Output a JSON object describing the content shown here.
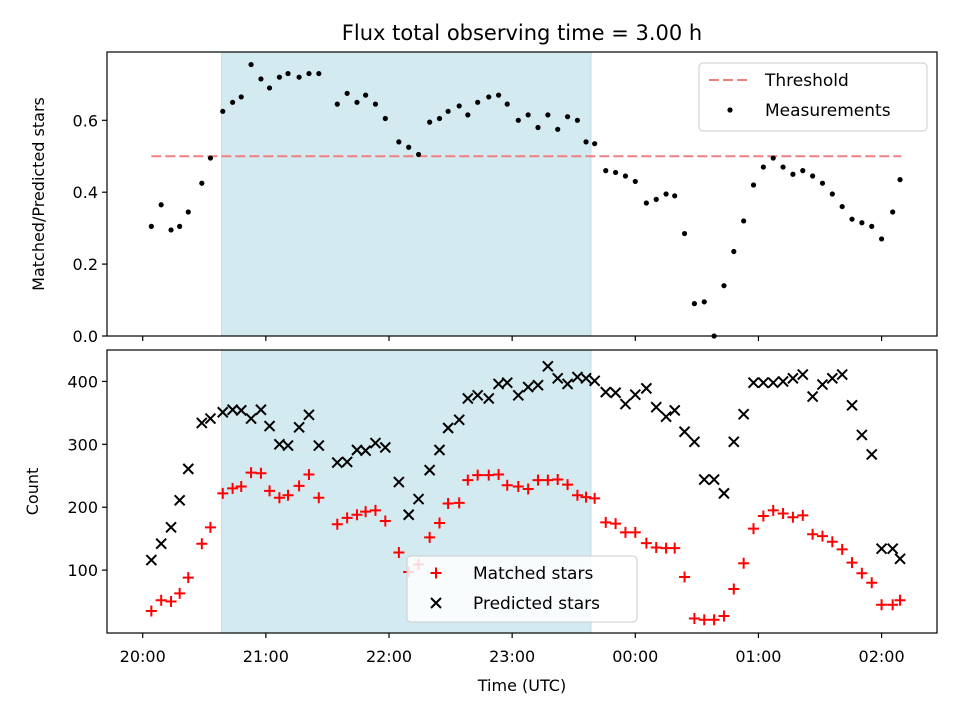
{
  "figure": {
    "title": "Flux total observing time = 3.00 h",
    "x_axis": {
      "label": "Time (UTC)",
      "ticks": [
        {
          "h": 20,
          "label": "20:00"
        },
        {
          "h": 21,
          "label": "21:00"
        },
        {
          "h": 22,
          "label": "22:00"
        },
        {
          "h": 23,
          "label": "23:00"
        },
        {
          "h": 24,
          "label": "00:00"
        },
        {
          "h": 25,
          "label": "01:00"
        },
        {
          "h": 26,
          "label": "02:00"
        }
      ],
      "range": [
        19.71,
        26.45
      ]
    },
    "highlight": {
      "from": 20.64,
      "to": 23.64,
      "color": "#d3eaf0"
    }
  },
  "chart_data": [
    {
      "type": "scatter",
      "ylabel": "Matched/Predicted stars",
      "ylim": [
        0,
        0.79
      ],
      "yticks": [
        0.0,
        0.2,
        0.4,
        0.6
      ],
      "ytick_labels": [
        "0.0",
        "0.2",
        "0.4",
        "0.6"
      ],
      "threshold": {
        "name": "Threshold",
        "value": 0.5,
        "x_range": [
          20.07,
          26.16
        ],
        "color": "#f08080"
      },
      "legend": {
        "position": "top-right",
        "entries": [
          "Threshold",
          "Measurements"
        ]
      },
      "series": [
        {
          "name": "Measurements",
          "color": "#000000",
          "points": [
            [
              20.07,
              0.305
            ],
            [
              20.15,
              0.365
            ],
            [
              20.23,
              0.295
            ],
            [
              20.3,
              0.305
            ],
            [
              20.37,
              0.345
            ],
            [
              20.48,
              0.425
            ],
            [
              20.55,
              0.495
            ],
            [
              20.65,
              0.625
            ],
            [
              20.73,
              0.65
            ],
            [
              20.8,
              0.665
            ],
            [
              20.88,
              0.755
            ],
            [
              20.96,
              0.715
            ],
            [
              21.03,
              0.69
            ],
            [
              21.11,
              0.72
            ],
            [
              21.18,
              0.73
            ],
            [
              21.27,
              0.72
            ],
            [
              21.35,
              0.73
            ],
            [
              21.43,
              0.73
            ],
            [
              21.58,
              0.645
            ],
            [
              21.66,
              0.675
            ],
            [
              21.74,
              0.65
            ],
            [
              21.81,
              0.67
            ],
            [
              21.89,
              0.645
            ],
            [
              21.97,
              0.605
            ],
            [
              22.08,
              0.54
            ],
            [
              22.16,
              0.525
            ],
            [
              22.24,
              0.505
            ],
            [
              22.33,
              0.595
            ],
            [
              22.41,
              0.605
            ],
            [
              22.48,
              0.625
            ],
            [
              22.57,
              0.64
            ],
            [
              22.64,
              0.615
            ],
            [
              22.72,
              0.65
            ],
            [
              22.81,
              0.665
            ],
            [
              22.89,
              0.67
            ],
            [
              22.96,
              0.645
            ],
            [
              23.05,
              0.6
            ],
            [
              23.13,
              0.615
            ],
            [
              23.21,
              0.58
            ],
            [
              23.29,
              0.615
            ],
            [
              23.37,
              0.575
            ],
            [
              23.45,
              0.61
            ],
            [
              23.53,
              0.6
            ],
            [
              23.6,
              0.54
            ],
            [
              23.67,
              0.535
            ],
            [
              23.76,
              0.46
            ],
            [
              23.84,
              0.455
            ],
            [
              23.92,
              0.445
            ],
            [
              24.0,
              0.43
            ],
            [
              24.09,
              0.37
            ],
            [
              24.17,
              0.38
            ],
            [
              24.25,
              0.395
            ],
            [
              24.32,
              0.39
            ],
            [
              24.4,
              0.285
            ],
            [
              24.48,
              0.09
            ],
            [
              24.56,
              0.095
            ],
            [
              24.64,
              0.0
            ],
            [
              24.72,
              0.14
            ],
            [
              24.8,
              0.235
            ],
            [
              24.88,
              0.32
            ],
            [
              24.96,
              0.42
            ],
            [
              25.04,
              0.47
            ],
            [
              25.12,
              0.495
            ],
            [
              25.2,
              0.47
            ],
            [
              25.28,
              0.45
            ],
            [
              25.36,
              0.46
            ],
            [
              25.44,
              0.445
            ],
            [
              25.52,
              0.425
            ],
            [
              25.6,
              0.395
            ],
            [
              25.68,
              0.36
            ],
            [
              25.76,
              0.325
            ],
            [
              25.84,
              0.315
            ],
            [
              25.92,
              0.305
            ],
            [
              26.0,
              0.27
            ],
            [
              26.09,
              0.345
            ],
            [
              26.15,
              0.435
            ]
          ]
        }
      ]
    },
    {
      "type": "scatter",
      "ylabel": "Count",
      "ylim": [
        0,
        450
      ],
      "yticks": [
        100,
        200,
        300,
        400
      ],
      "ytick_labels": [
        "100",
        "200",
        "300",
        "400"
      ],
      "legend": {
        "position": "bottom-center",
        "entries": [
          "Matched stars",
          "Predicted stars"
        ]
      },
      "series": [
        {
          "name": "Matched stars",
          "marker": "plus",
          "color": "#ff0000",
          "points": [
            [
              20.07,
              35
            ],
            [
              20.15,
              52
            ],
            [
              20.23,
              50
            ],
            [
              20.3,
              63
            ],
            [
              20.37,
              88
            ],
            [
              20.48,
              142
            ],
            [
              20.55,
              168
            ],
            [
              20.65,
              222
            ],
            [
              20.73,
              230
            ],
            [
              20.8,
              233
            ],
            [
              20.88,
              255
            ],
            [
              20.96,
              254
            ],
            [
              21.03,
              226
            ],
            [
              21.11,
              215
            ],
            [
              21.18,
              219
            ],
            [
              21.27,
              234
            ],
            [
              21.35,
              252
            ],
            [
              21.43,
              215
            ],
            [
              21.58,
              173
            ],
            [
              21.66,
              183
            ],
            [
              21.74,
              188
            ],
            [
              21.81,
              193
            ],
            [
              21.89,
              195
            ],
            [
              21.97,
              178
            ],
            [
              22.08,
              128
            ],
            [
              22.16,
              97
            ],
            [
              22.24,
              109
            ],
            [
              22.33,
              152
            ],
            [
              22.41,
              175
            ],
            [
              22.48,
              206
            ],
            [
              22.57,
              207
            ],
            [
              22.64,
              243
            ],
            [
              22.72,
              251
            ],
            [
              22.81,
              251
            ],
            [
              22.89,
              252
            ],
            [
              22.96,
              235
            ],
            [
              23.05,
              233
            ],
            [
              23.13,
              229
            ],
            [
              23.21,
              243
            ],
            [
              23.29,
              243
            ],
            [
              23.37,
              244
            ],
            [
              23.45,
              236
            ],
            [
              23.53,
              219
            ],
            [
              23.6,
              216
            ],
            [
              23.67,
              214
            ],
            [
              23.76,
              176
            ],
            [
              23.84,
              174
            ],
            [
              23.92,
              160
            ],
            [
              24.0,
              160
            ],
            [
              24.09,
              143
            ],
            [
              24.17,
              136
            ],
            [
              24.25,
              135
            ],
            [
              24.32,
              135
            ],
            [
              24.4,
              89
            ],
            [
              24.48,
              23
            ],
            [
              24.56,
              21
            ],
            [
              24.64,
              21
            ],
            [
              24.72,
              27
            ],
            [
              24.8,
              70
            ],
            [
              24.88,
              111
            ],
            [
              24.96,
              166
            ],
            [
              25.04,
              186
            ],
            [
              25.12,
              195
            ],
            [
              25.2,
              190
            ],
            [
              25.28,
              184
            ],
            [
              25.36,
              187
            ],
            [
              25.44,
              157
            ],
            [
              25.52,
              154
            ],
            [
              25.6,
              145
            ],
            [
              25.68,
              133
            ],
            [
              25.76,
              112
            ],
            [
              25.84,
              95
            ],
            [
              25.92,
              80
            ],
            [
              26.0,
              45
            ],
            [
              26.09,
              45
            ],
            [
              26.15,
              52
            ]
          ]
        },
        {
          "name": "Predicted stars",
          "marker": "x",
          "color": "#000000",
          "points": [
            [
              20.07,
              116
            ],
            [
              20.15,
              142
            ],
            [
              20.23,
              168
            ],
            [
              20.3,
              211
            ],
            [
              20.37,
              261
            ],
            [
              20.48,
              334
            ],
            [
              20.55,
              341
            ],
            [
              20.65,
              351
            ],
            [
              20.73,
              355
            ],
            [
              20.8,
              354
            ],
            [
              20.88,
              341
            ],
            [
              20.96,
              355
            ],
            [
              21.03,
              329
            ],
            [
              21.11,
              300
            ],
            [
              21.18,
              298
            ],
            [
              21.27,
              327
            ],
            [
              21.35,
              347
            ],
            [
              21.43,
              298
            ],
            [
              21.58,
              271
            ],
            [
              21.66,
              272
            ],
            [
              21.74,
              291
            ],
            [
              21.81,
              290
            ],
            [
              21.89,
              302
            ],
            [
              21.97,
              295
            ],
            [
              22.08,
              240
            ],
            [
              22.16,
              188
            ],
            [
              22.24,
              213
            ],
            [
              22.33,
              259
            ],
            [
              22.41,
              291
            ],
            [
              22.48,
              326
            ],
            [
              22.57,
              339
            ],
            [
              22.64,
              373
            ],
            [
              22.72,
              378
            ],
            [
              22.81,
              373
            ],
            [
              22.89,
              396
            ],
            [
              22.96,
              398
            ],
            [
              23.05,
              378
            ],
            [
              23.13,
              391
            ],
            [
              23.21,
              394
            ],
            [
              23.29,
              424
            ],
            [
              23.37,
              405
            ],
            [
              23.45,
              396
            ],
            [
              23.53,
              407
            ],
            [
              23.6,
              405
            ],
            [
              23.67,
              401
            ],
            [
              23.76,
              383
            ],
            [
              23.84,
              382
            ],
            [
              23.92,
              364
            ],
            [
              24.0,
              379
            ],
            [
              24.09,
              389
            ],
            [
              24.17,
              359
            ],
            [
              24.25,
              344
            ],
            [
              24.32,
              354
            ],
            [
              24.4,
              320
            ],
            [
              24.48,
              304
            ],
            [
              24.56,
              244
            ],
            [
              24.64,
              244
            ],
            [
              24.72,
              222
            ],
            [
              24.8,
              304
            ],
            [
              24.88,
              348
            ],
            [
              24.96,
              398
            ],
            [
              25.04,
              398
            ],
            [
              25.12,
              398
            ],
            [
              25.2,
              400
            ],
            [
              25.28,
              405
            ],
            [
              25.36,
              411
            ],
            [
              25.44,
              376
            ],
            [
              25.52,
              395
            ],
            [
              25.6,
              405
            ],
            [
              25.68,
              411
            ],
            [
              25.76,
              362
            ],
            [
              25.84,
              315
            ],
            [
              25.92,
              284
            ],
            [
              26.0,
              134
            ],
            [
              26.09,
              134
            ],
            [
              26.15,
              118
            ]
          ]
        }
      ]
    }
  ]
}
